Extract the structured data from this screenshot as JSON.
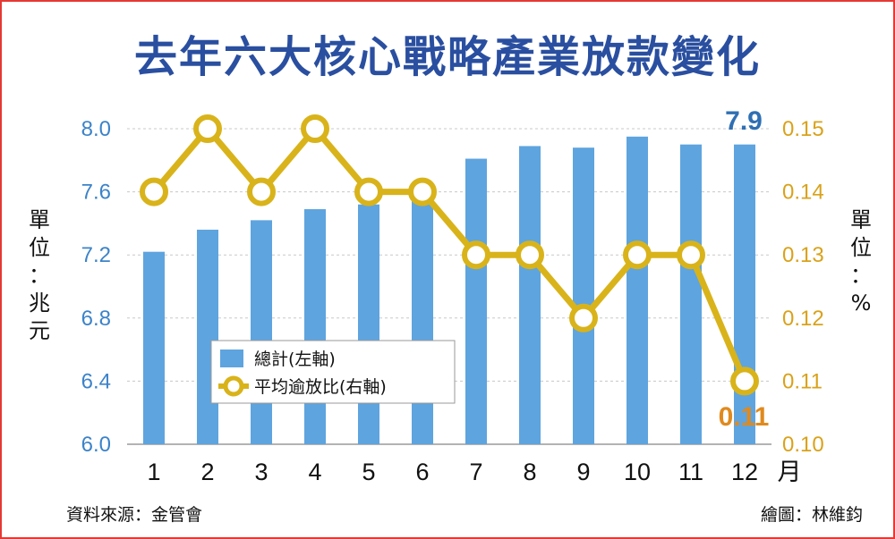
{
  "title": "去年六大核心戰略產業放款變化",
  "left_unit": "單位：兆元",
  "right_unit": "單位：%",
  "x_unit": "月",
  "source": "資料來源：金管會",
  "credit": "繪圖：林維鈞",
  "legend": {
    "bar_label": "總計(左軸)",
    "line_label": "平均逾放比(右軸)"
  },
  "colors": {
    "bar": "#5ea4df",
    "line": "#d9b31a",
    "title": "#2a4fa0",
    "border": "#e53935"
  },
  "chart_data": {
    "type": "bar",
    "categories": [
      "1",
      "2",
      "3",
      "4",
      "5",
      "6",
      "7",
      "8",
      "9",
      "10",
      "11",
      "12"
    ],
    "series": [
      {
        "name": "總計(左軸)",
        "type": "bar",
        "axis": "left",
        "values": [
          7.22,
          7.36,
          7.42,
          7.49,
          7.52,
          7.6,
          7.81,
          7.89,
          7.88,
          7.95,
          7.9,
          7.9
        ]
      },
      {
        "name": "平均逾放比(右軸)",
        "type": "line",
        "axis": "right",
        "values": [
          0.14,
          0.15,
          0.14,
          0.15,
          0.14,
          0.14,
          0.13,
          0.13,
          0.12,
          0.13,
          0.13,
          0.11
        ]
      }
    ],
    "left_axis": {
      "ylim": [
        6.0,
        8.0
      ],
      "ticks": [
        "6.0",
        "6.4",
        "6.8",
        "7.2",
        "7.6",
        "8.0"
      ]
    },
    "right_axis": {
      "ylim": [
        0.1,
        0.15
      ],
      "ticks": [
        "0.10",
        "0.11",
        "0.12",
        "0.13",
        "0.14",
        "0.15"
      ]
    },
    "annotations": {
      "bar_last": "7.9",
      "line_last": "0.11"
    },
    "grid": true,
    "legend_position": "center-left"
  }
}
